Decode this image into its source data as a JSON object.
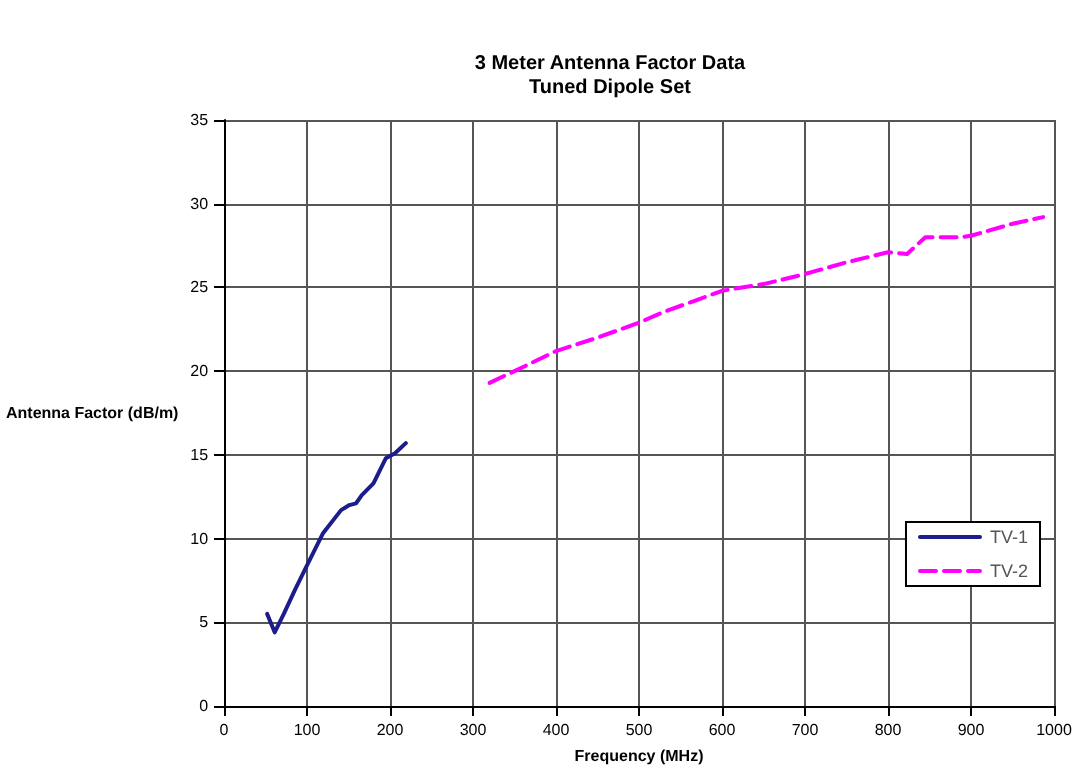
{
  "chart_data": {
    "type": "line",
    "title": "3 Meter Antenna Factor Data",
    "subtitle": "Tuned Dipole Set",
    "xlabel": "Frequency (MHz)",
    "ylabel": "Antenna Factor (dB/m)",
    "xlim": [
      0,
      1000
    ],
    "xticks": [
      0,
      100,
      200,
      300,
      400,
      500,
      600,
      700,
      800,
      900,
      1000
    ],
    "ylim": [
      0,
      35
    ],
    "yticks": [
      0,
      5,
      10,
      15,
      20,
      25,
      30,
      35
    ],
    "grid": true,
    "legend": "bottom right",
    "marker": "none",
    "series": [
      {
        "name": "TV-1",
        "color": "#1c1c8c",
        "line_style": "solid",
        "x": [
          52,
          61,
          72,
          86,
          101,
          119,
          141,
          151,
          159,
          166,
          180,
          195,
          206,
          219
        ],
        "values": [
          5.5,
          4.4,
          5.5,
          7,
          8.5,
          10.3,
          11.7,
          12,
          12.1,
          12.6,
          13.3,
          14.8,
          15.1,
          15.7
        ]
      },
      {
        "name": "TV-2",
        "color": "#ff00ff",
        "line_style": "dashed",
        "x": [
          320,
          350,
          400,
          450,
          500,
          528,
          600,
          650,
          700,
          750,
          800,
          823,
          845,
          888,
          901,
          950,
          987
        ],
        "values": [
          19.3,
          20,
          21.2,
          22,
          22.9,
          23.5,
          24.8,
          25.2,
          25.8,
          26.5,
          27.1,
          27,
          28,
          28,
          28.1,
          28.8,
          29.2
        ]
      }
    ]
  }
}
